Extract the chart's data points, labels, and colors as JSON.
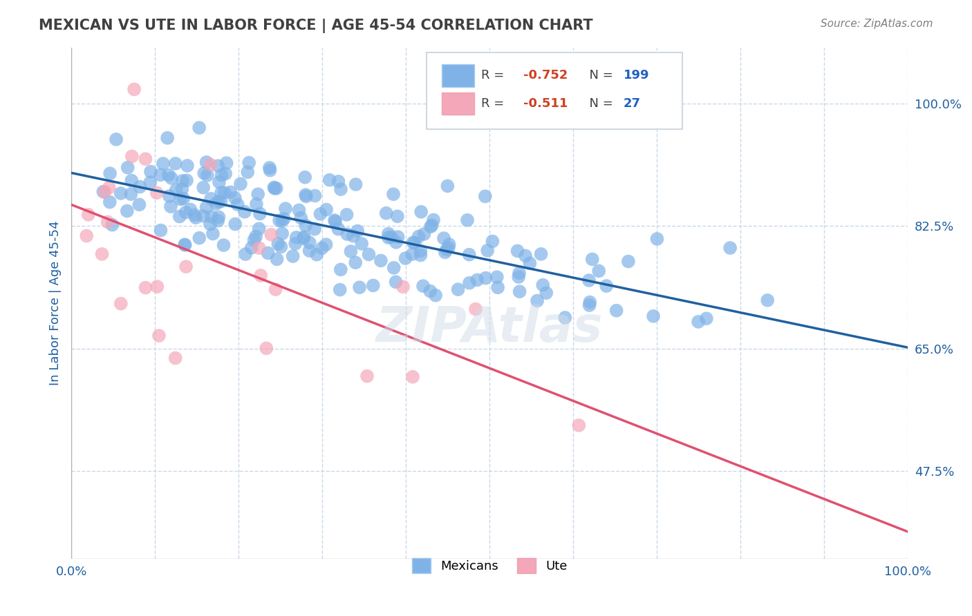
{
  "title": "MEXICAN VS UTE IN LABOR FORCE | AGE 45-54 CORRELATION CHART",
  "source": "Source: ZipAtlas.com",
  "xlabel": "",
  "ylabel": "In Labor Force | Age 45-54",
  "xlim": [
    0.0,
    1.0
  ],
  "ylim": [
    0.35,
    1.08
  ],
  "yticks": [
    0.475,
    0.65,
    0.825,
    1.0
  ],
  "ytick_labels": [
    "47.5%",
    "65.0%",
    "82.5%",
    "100.0%"
  ],
  "xticks": [
    0.0,
    0.1,
    0.2,
    0.3,
    0.4,
    0.5,
    0.6,
    0.7,
    0.8,
    0.9,
    1.0
  ],
  "xtick_labels": [
    "0.0%",
    "",
    "",
    "",
    "",
    "",
    "",
    "",
    "",
    "",
    "100.0%"
  ],
  "blue_R": -0.752,
  "blue_N": 199,
  "pink_R": -0.511,
  "pink_N": 27,
  "blue_color": "#7fb3e8",
  "pink_color": "#f4a7b9",
  "blue_line_color": "#2060a0",
  "pink_line_color": "#e05070",
  "legend_R_color": "#d04020",
  "watermark": "ZIPAtlas",
  "background_color": "#ffffff",
  "grid_color": "#c8d8e8",
  "title_color": "#404040",
  "axis_label_color": "#2060a0",
  "tick_label_color": "#2060a0"
}
